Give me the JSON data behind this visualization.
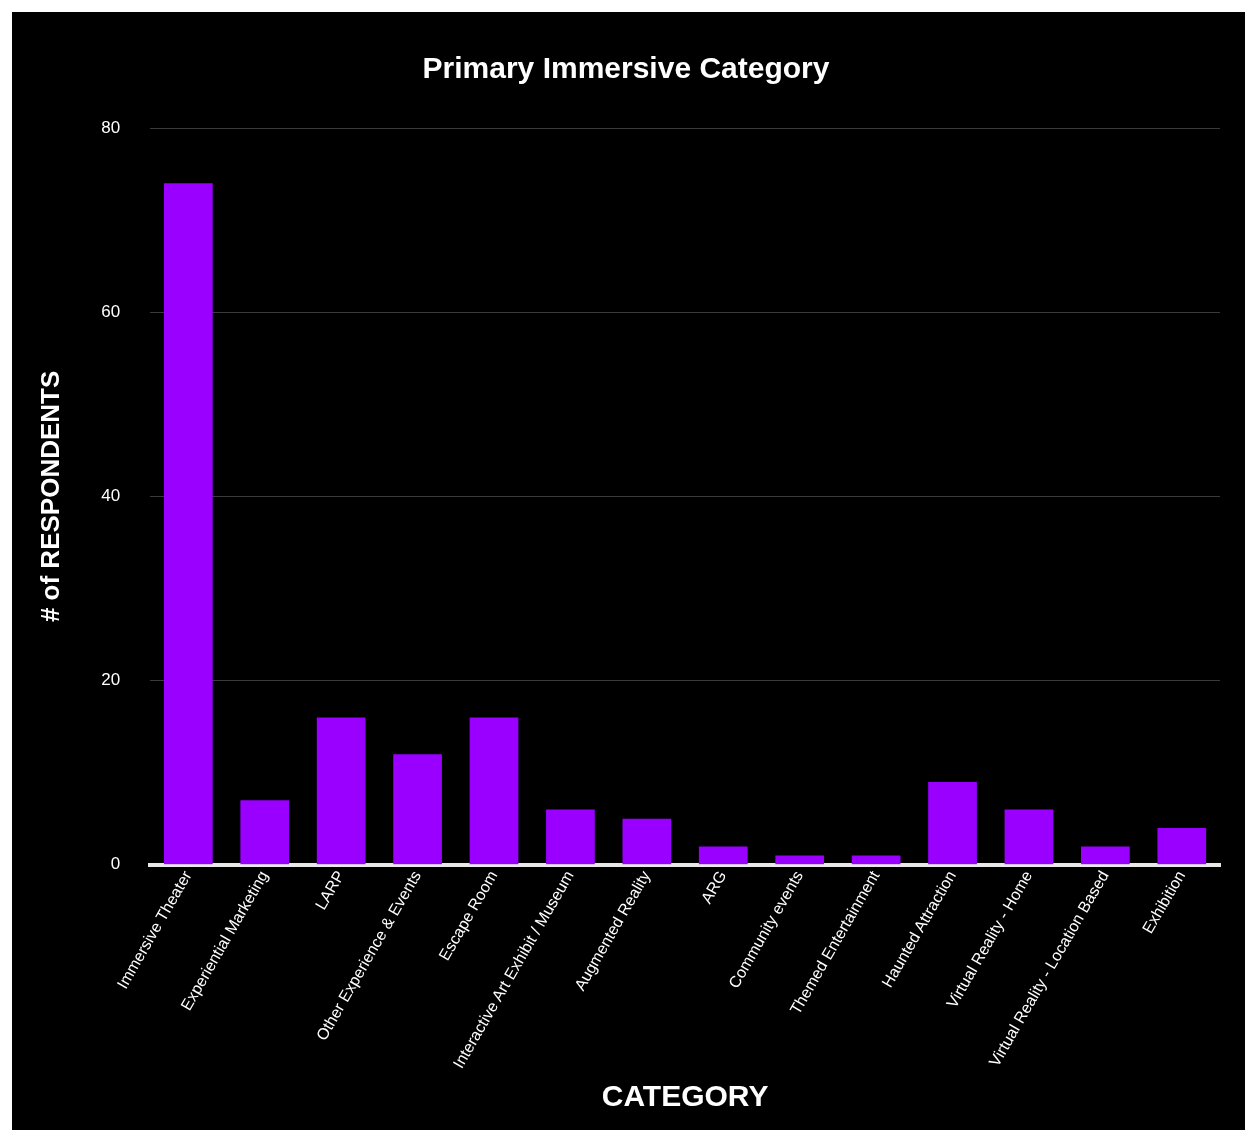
{
  "chart_data": {
    "type": "bar",
    "title": "Primary Immersive Category",
    "xlabel": "CATEGORY",
    "ylabel": "# of RESPONDENTS",
    "categories": [
      "Immersive Theater",
      "Experiential Marketing",
      "LARP",
      "Other Experience & Events",
      "Escape Room",
      "Interactive Art Exhibit / Museum",
      "Augmented Reality",
      "ARG",
      "Community events",
      "Themed Entertainment",
      "Haunted Attraction",
      "Virtual Reality - Home",
      "Virtual Reality - Location Based",
      "Exhibition"
    ],
    "values": [
      74,
      7,
      16,
      12,
      16,
      6,
      5,
      2,
      1,
      1,
      9,
      6,
      2,
      4
    ],
    "color": "#9900ff",
    "ylim": [
      0,
      80
    ],
    "yticks": [
      0,
      20,
      40,
      60,
      80
    ],
    "grid": "y"
  }
}
